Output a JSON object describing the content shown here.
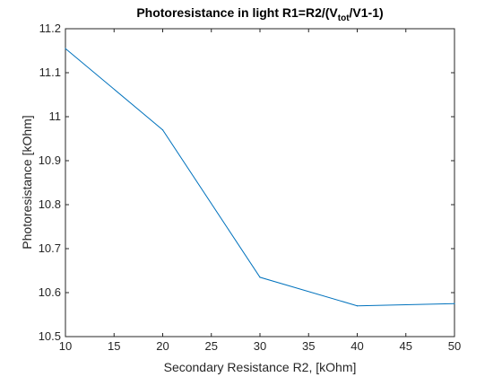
{
  "chart_data": {
    "type": "line",
    "title": {
      "main": "Photoresistance in light R1=R2/(V",
      "sub": "tot",
      "tail": "/V1-1)"
    },
    "xlabel": "Secondary Resistance R2, [kOhm]",
    "ylabel": "Photoresistance [kOhm]",
    "xlim": [
      10,
      50
    ],
    "ylim": [
      10.5,
      11.2
    ],
    "xticks": [
      "10",
      "15",
      "20",
      "25",
      "30",
      "35",
      "40",
      "45",
      "50"
    ],
    "yticks": [
      "10.5",
      "10.6",
      "10.7",
      "10.8",
      "10.9",
      "11",
      "11.1",
      "11.2"
    ],
    "grid": false,
    "series": [
      {
        "color": "#0072BD",
        "x": [
          10,
          20,
          30,
          40,
          50
        ],
        "y": [
          11.155,
          10.97,
          10.635,
          10.57,
          10.575
        ]
      }
    ]
  }
}
